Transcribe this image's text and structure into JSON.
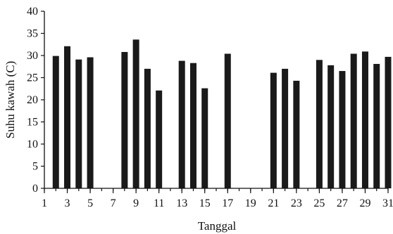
{
  "chart_data": {
    "type": "bar",
    "xlabel": "Tanggal",
    "ylabel": "Suhu kawah (C)",
    "ylim": [
      0,
      40
    ],
    "xlim": [
      1,
      31
    ],
    "y_ticks": [
      0,
      5,
      10,
      15,
      20,
      25,
      30,
      35,
      40
    ],
    "x_ticks": [
      1,
      3,
      5,
      7,
      9,
      11,
      13,
      15,
      17,
      19,
      21,
      23,
      25,
      27,
      29,
      31
    ],
    "grid": false,
    "legend": "none",
    "bar_color": "#1a1a1a",
    "points": [
      {
        "x": 2,
        "y": 29.9
      },
      {
        "x": 3,
        "y": 32.1
      },
      {
        "x": 4,
        "y": 29.1
      },
      {
        "x": 5,
        "y": 29.6
      },
      {
        "x": 8,
        "y": 30.8
      },
      {
        "x": 9,
        "y": 33.6
      },
      {
        "x": 10,
        "y": 27.0
      },
      {
        "x": 11,
        "y": 22.1
      },
      {
        "x": 13,
        "y": 28.8
      },
      {
        "x": 14,
        "y": 28.3
      },
      {
        "x": 15,
        "y": 22.6
      },
      {
        "x": 17,
        "y": 30.4
      },
      {
        "x": 21,
        "y": 26.1
      },
      {
        "x": 22,
        "y": 27.0
      },
      {
        "x": 23,
        "y": 24.3
      },
      {
        "x": 25,
        "y": 29.0
      },
      {
        "x": 26,
        "y": 27.8
      },
      {
        "x": 27,
        "y": 26.5
      },
      {
        "x": 28,
        "y": 30.4
      },
      {
        "x": 29,
        "y": 30.9
      },
      {
        "x": 30,
        "y": 28.1
      },
      {
        "x": 31,
        "y": 29.7
      }
    ]
  }
}
